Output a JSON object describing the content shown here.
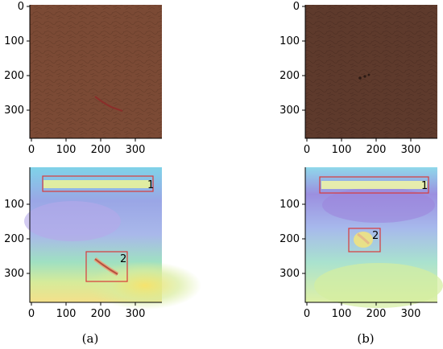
{
  "figure": {
    "captions": [
      "(a)",
      "(b)"
    ],
    "axis_ticks": [
      "0",
      "100",
      "200",
      "300"
    ],
    "panels": [
      {
        "id": "a-top",
        "kind": "photo",
        "tone": "#7b4a35",
        "defect": "scratch"
      },
      {
        "id": "b-top",
        "kind": "photo",
        "tone": "#5e3a2c",
        "defect": "small-dents"
      },
      {
        "id": "a-bottom",
        "kind": "heatmap",
        "boxes": [
          "1",
          "2"
        ]
      },
      {
        "id": "b-bottom",
        "kind": "heatmap",
        "boxes": [
          "1",
          "2"
        ]
      }
    ]
  }
}
